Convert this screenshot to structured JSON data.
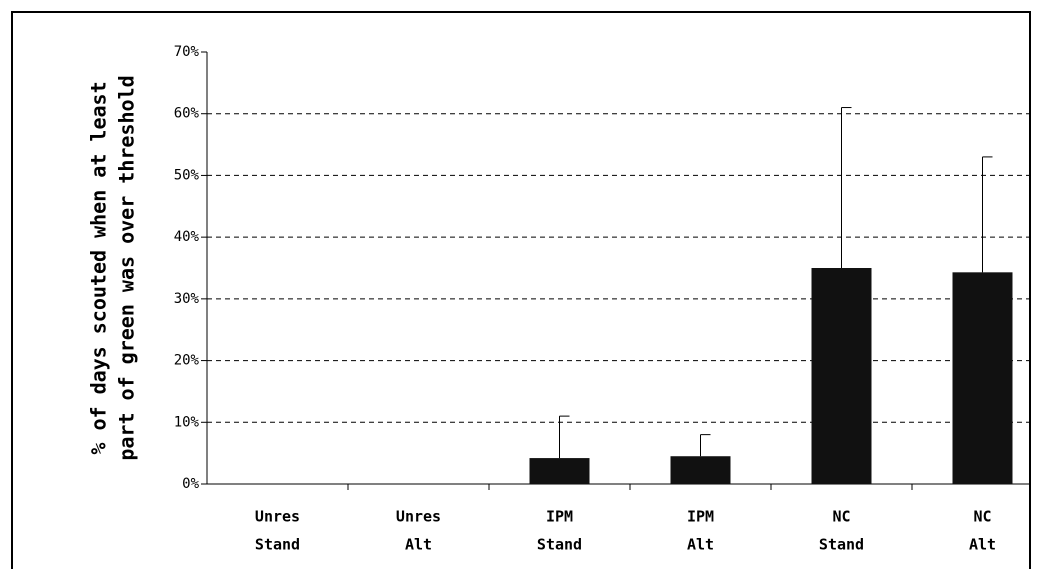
{
  "chart_data": {
    "type": "bar",
    "y_label": [
      "% of days scouted when at least",
      "part of green was over threshold"
    ],
    "categories": [
      [
        "Unres",
        "Stand"
      ],
      [
        "Unres",
        "Alt"
      ],
      [
        "IPM",
        "Stand"
      ],
      [
        "IPM",
        "Alt"
      ],
      [
        "NC",
        "Stand"
      ],
      [
        "NC",
        "Alt"
      ]
    ],
    "values": [
      0,
      0,
      4.2,
      4.5,
      35,
      34.3
    ],
    "errors": [
      0,
      0,
      6.8,
      3.5,
      26,
      18.7
    ],
    "color": "#111111",
    "ylim": [
      0,
      70
    ],
    "yticks": [
      {
        "value": 0,
        "label": "0%"
      },
      {
        "value": 10,
        "label": "10%"
      },
      {
        "value": 20,
        "label": "20%"
      },
      {
        "value": 30,
        "label": "30%"
      },
      {
        "value": 40,
        "label": "40%"
      },
      {
        "value": 50,
        "label": "50%"
      },
      {
        "value": 60,
        "label": "60%"
      },
      {
        "value": 70,
        "label": "70%"
      }
    ],
    "grid": true
  }
}
